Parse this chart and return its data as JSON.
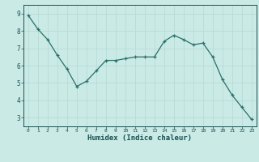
{
  "x": [
    0,
    1,
    2,
    3,
    4,
    5,
    6,
    7,
    8,
    9,
    10,
    11,
    12,
    13,
    14,
    15,
    16,
    17,
    18,
    19,
    20,
    21,
    22,
    23
  ],
  "y": [
    8.9,
    8.1,
    7.5,
    6.6,
    5.8,
    4.8,
    5.1,
    5.7,
    6.3,
    6.3,
    6.4,
    6.5,
    6.5,
    6.5,
    7.4,
    7.75,
    7.5,
    7.2,
    7.3,
    6.5,
    5.2,
    4.3,
    3.6,
    2.9
  ],
  "xlabel": "Humidex (Indice chaleur)",
  "bg_color": "#caeae6",
  "grid_color": "#b8dbd8",
  "line_color": "#2a7068",
  "marker_color": "#2a7068",
  "tick_label_color": "#1a5050",
  "xlim": [
    -0.5,
    23.5
  ],
  "ylim": [
    2.5,
    9.5
  ],
  "yticks": [
    3,
    4,
    5,
    6,
    7,
    8,
    9
  ],
  "xticks": [
    0,
    1,
    2,
    3,
    4,
    5,
    6,
    7,
    8,
    9,
    10,
    11,
    12,
    13,
    14,
    15,
    16,
    17,
    18,
    19,
    20,
    21,
    22,
    23
  ]
}
